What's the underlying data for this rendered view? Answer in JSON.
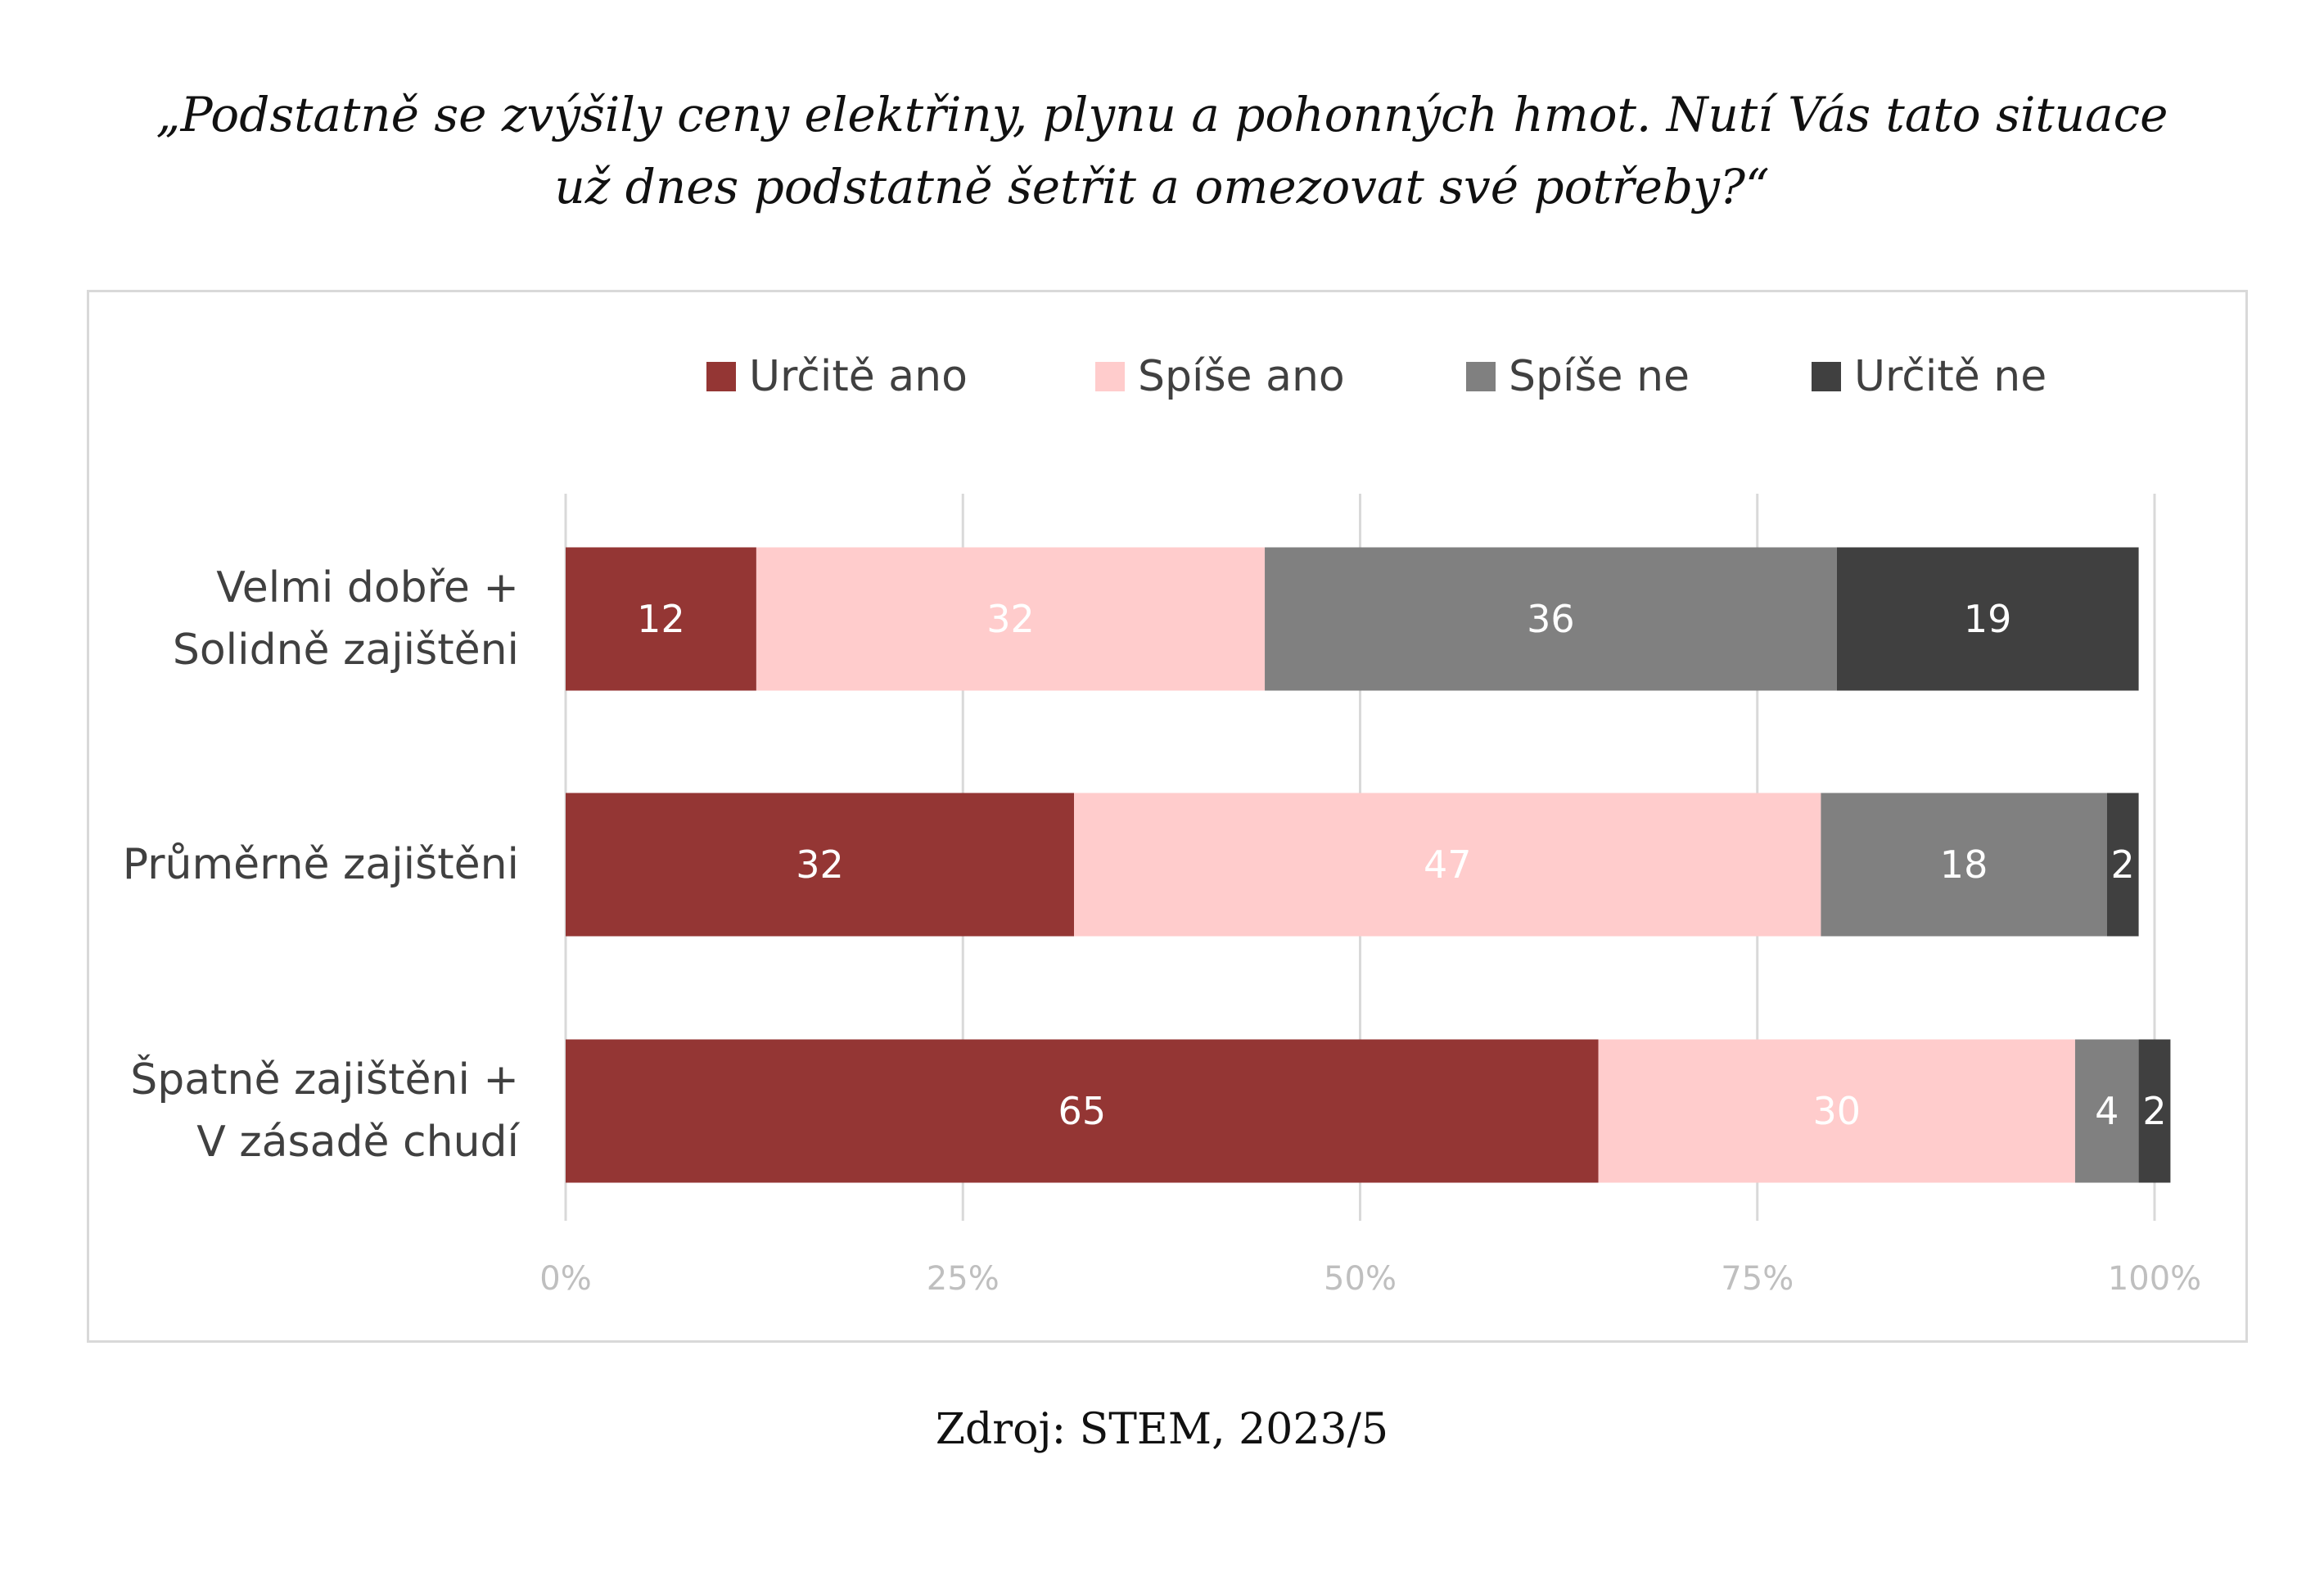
{
  "title_lines": [
    "„Podstatně se zvýšily ceny elektřiny, plynu a pohonných hmot. Nutí Vás tato situace",
    "už dnes podstatně šetřit a omezovat své potřeby?“"
  ],
  "source": "Zdroj: STEM, 2023/5",
  "chart_data": {
    "type": "bar",
    "orientation": "horizontal",
    "stacked": true,
    "categories": [
      [
        "Velmi dobře +",
        "Solidně zajištěni"
      ],
      [
        "Průměrně zajištěni"
      ],
      [
        "Špatně zajištěni +",
        "V zásadě chudí"
      ]
    ],
    "series": [
      {
        "name": "Určitě ano",
        "values": [
          12,
          32,
          65
        ],
        "color": "#943634",
        "label_color": "#ffffff"
      },
      {
        "name": "Spíše ano",
        "values": [
          32,
          47,
          30
        ],
        "color": "#ffcccc",
        "label_color": "#ffffff"
      },
      {
        "name": "Spíše ne",
        "values": [
          36,
          18,
          4
        ],
        "color": "#808080",
        "label_color": "#ffffff"
      },
      {
        "name": "Určitě ne",
        "values": [
          19,
          2,
          2
        ],
        "color": "#404040",
        "label_color": "#ffffff"
      }
    ],
    "xlim": [
      0,
      100
    ],
    "x_ticks": [
      "0%",
      "25%",
      "50%",
      "75%",
      "100%"
    ],
    "grid": true,
    "legend_position": "top"
  }
}
